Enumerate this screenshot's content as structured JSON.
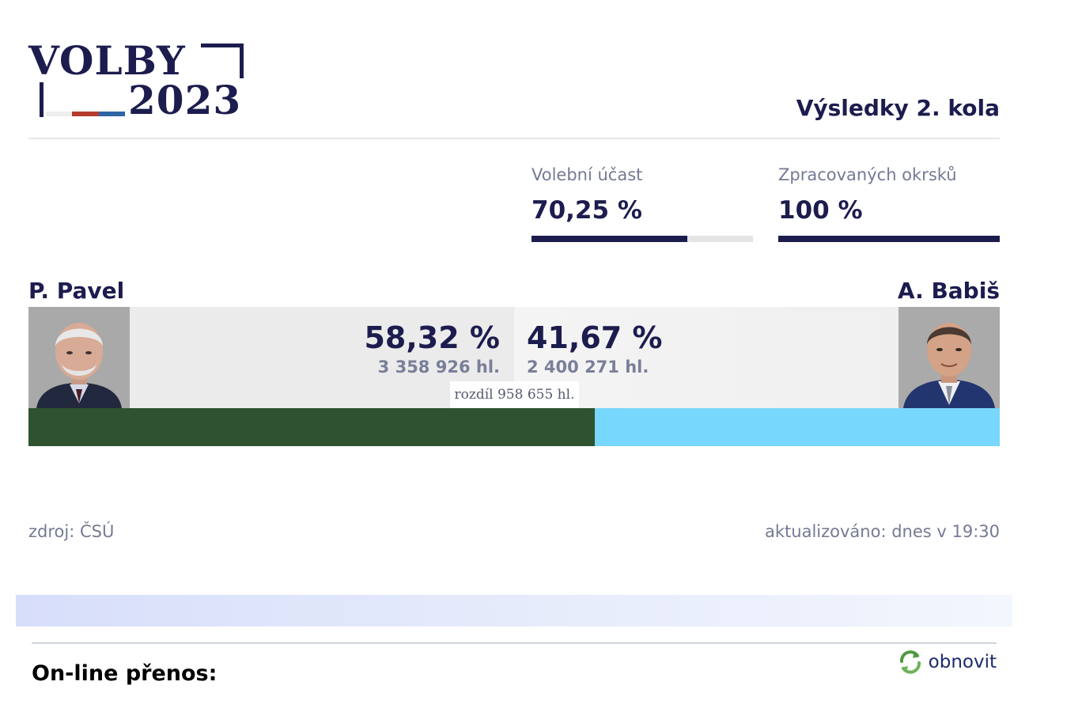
{
  "logo": {
    "line1": "VOLBY",
    "line2": "2023"
  },
  "header": {
    "title": "Výsledky 2. kola"
  },
  "stats": {
    "turnout": {
      "label": "Volební účast",
      "value": "70,25 %",
      "fill_pct": 70.25
    },
    "districts": {
      "label": "Zpracovaných okrsků",
      "value": "100 %",
      "fill_pct": 100
    }
  },
  "candidates": {
    "left": {
      "name": "P. Pavel",
      "percent": "58,32 %",
      "votes": "3 358 926 hl.",
      "share": 58.32
    },
    "right": {
      "name": "A. Babiš",
      "percent": "41,67 %",
      "votes": "2 400 271 hl.",
      "share": 41.67
    },
    "difference": "rozdíl 958 655 hl."
  },
  "footer": {
    "source": "zdroj: ČSÚ",
    "updated": "aktualizováno: dnes v 19:30"
  },
  "live": {
    "title": "On-line přenos:",
    "refresh_label": "obnovit"
  },
  "colors": {
    "navy": "#1c1c4f",
    "left_bar": "#2f5230",
    "right_bar": "#78d7fc",
    "muted_text": "#747a94",
    "flag_red": "#b53b2f",
    "flag_blue": "#2e64a4"
  },
  "icons": {
    "refresh": "refresh-arrows-icon",
    "left_photo": "candidate-photo-pavel",
    "right_photo": "candidate-photo-babis"
  }
}
